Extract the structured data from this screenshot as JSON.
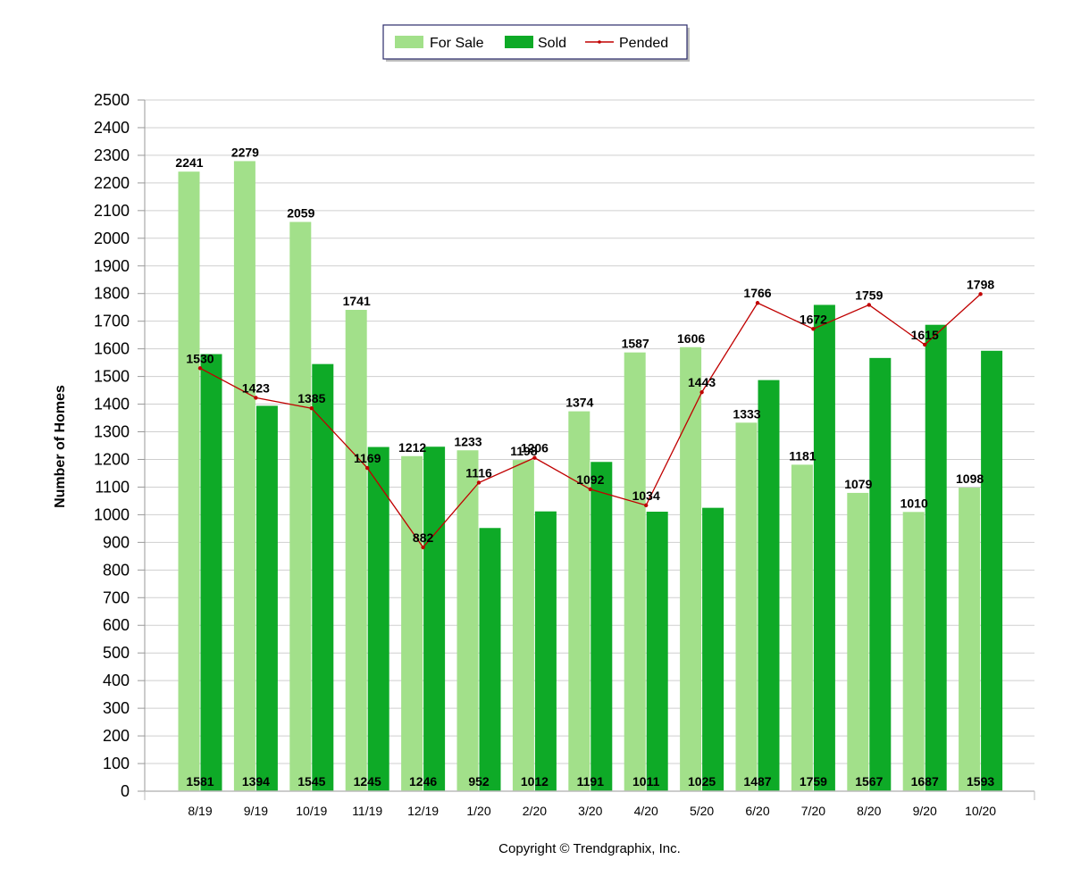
{
  "chart_data": {
    "type": "bar",
    "categories": [
      "8/19",
      "9/19",
      "10/19",
      "11/19",
      "12/19",
      "1/20",
      "2/20",
      "3/20",
      "4/20",
      "5/20",
      "6/20",
      "7/20",
      "8/20",
      "9/20",
      "10/20"
    ],
    "series": [
      {
        "name": "For Sale",
        "type": "bar",
        "color": "#a2e08a",
        "values": [
          2241,
          2279,
          2059,
          1741,
          1212,
          1233,
          1198,
          1374,
          1587,
          1606,
          1333,
          1181,
          1079,
          1010,
          1098
        ]
      },
      {
        "name": "Sold",
        "type": "bar",
        "color": "#0eaa27",
        "values": [
          1581,
          1394,
          1545,
          1245,
          1246,
          952,
          1012,
          1191,
          1011,
          1025,
          1487,
          1759,
          1567,
          1687,
          1593
        ]
      },
      {
        "name": "Pended",
        "type": "line",
        "color": "#c00000",
        "values": [
          1530,
          1423,
          1385,
          1169,
          882,
          1116,
          1206,
          1092,
          1034,
          1443,
          1766,
          1672,
          1759,
          1615,
          1798
        ]
      }
    ],
    "ylabel": "Number of Homes",
    "xlabel": "",
    "ylim": [
      0,
      2500
    ],
    "ytick_step": 100,
    "grid": true,
    "legend_position": "top-center"
  },
  "legend": [
    {
      "label": "For Sale",
      "color": "#a2e08a",
      "kind": "bar"
    },
    {
      "label": "Sold",
      "color": "#0eaa27",
      "kind": "bar"
    },
    {
      "label": "Pended",
      "color": "#c00000",
      "kind": "line"
    }
  ],
  "copyright": "Copyright © Trendgraphix, Inc."
}
